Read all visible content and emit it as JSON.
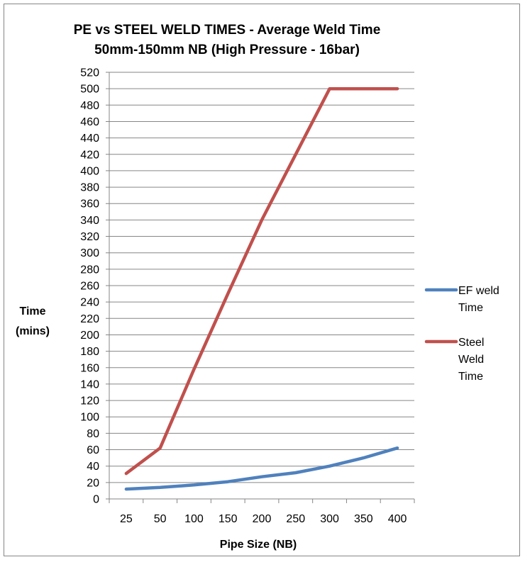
{
  "chart_data": {
    "type": "line",
    "title": "PE vs STEEL WELD TIMES - Average Weld Time",
    "subtitle": "50mm-150mm NB (High Pressure - 16bar)",
    "xlabel": "Pipe Size (NB)",
    "ylabel": [
      "Time",
      "(mins)"
    ],
    "categories": [
      "25",
      "50",
      "100",
      "150",
      "200",
      "250",
      "300",
      "350",
      "400"
    ],
    "ylim": [
      0,
      520
    ],
    "ystep": 20,
    "grid": true,
    "legend_position": "right",
    "series": [
      {
        "name": "EF weld Time",
        "legend_lines": [
          "EF weld",
          "Time"
        ],
        "color": "#4f81bd",
        "values": [
          12,
          14,
          17,
          21,
          27,
          32,
          40,
          50,
          62
        ]
      },
      {
        "name": "Steel Weld Time",
        "legend_lines": [
          "Steel",
          "Weld",
          "Time"
        ],
        "color": "#c0504d",
        "values": [
          31,
          62,
          158,
          250,
          340,
          420,
          500,
          500,
          500
        ]
      }
    ]
  }
}
